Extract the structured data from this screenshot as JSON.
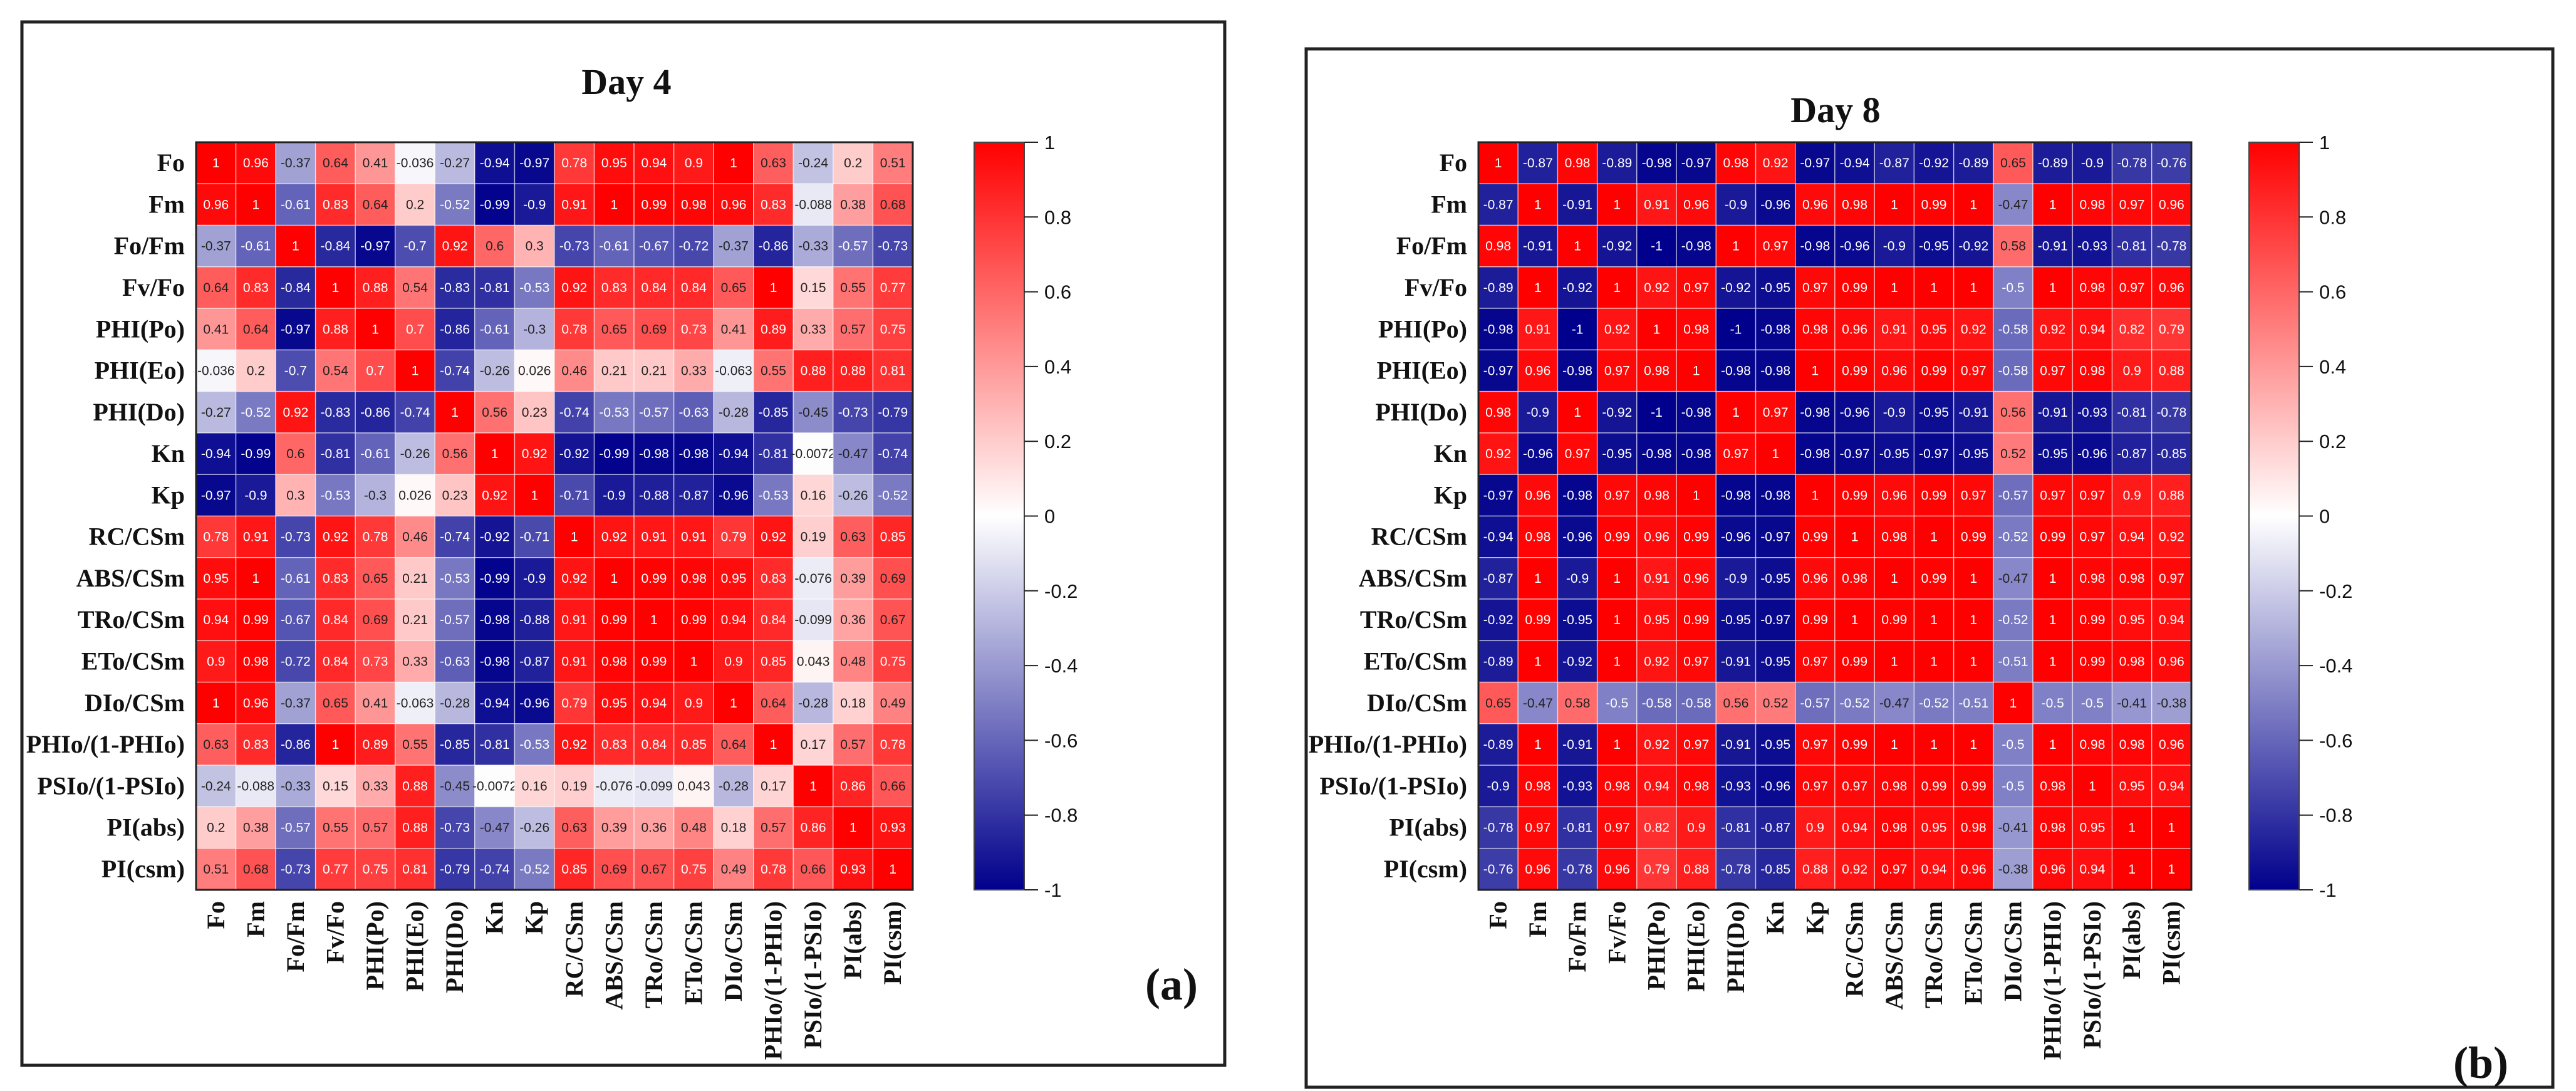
{
  "chart_data": [
    {
      "type": "heatmap",
      "title": "Day 4",
      "panel_label": "(a)",
      "labels": [
        "Fo",
        "Fm",
        "Fo/Fm",
        "Fv/Fo",
        "PHI(Po)",
        "PHI(Eo)",
        "PHI(Do)",
        "Kn",
        "Kp",
        "RC/CSm",
        "ABS/CSm",
        "TRo/CSm",
        "ETo/CSm",
        "DIo/CSm",
        "PHIo/(1-PHIo)",
        "PSIo/(1-PSIo)",
        "PI(abs)",
        "PI(csm)"
      ],
      "matrix": [
        [
          1,
          0.96,
          -0.37,
          0.64,
          0.41,
          -0.036,
          -0.27,
          -0.94,
          -0.97,
          0.78,
          0.95,
          0.94,
          0.9,
          1,
          0.63,
          -0.24,
          0.2,
          0.51
        ],
        [
          0.96,
          1,
          -0.61,
          0.83,
          0.64,
          0.2,
          -0.52,
          -0.99,
          -0.9,
          0.91,
          1,
          0.99,
          0.98,
          0.96,
          0.83,
          -0.088,
          0.38,
          0.68
        ],
        [
          -0.37,
          -0.61,
          1,
          -0.84,
          -0.97,
          -0.7,
          0.92,
          0.6,
          0.3,
          -0.73,
          -0.61,
          -0.67,
          -0.72,
          -0.37,
          -0.86,
          -0.33,
          -0.57,
          -0.73
        ],
        [
          0.64,
          0.83,
          -0.84,
          1,
          0.88,
          0.54,
          -0.83,
          -0.81,
          -0.53,
          0.92,
          0.83,
          0.84,
          0.84,
          0.65,
          1,
          0.15,
          0.55,
          0.77
        ],
        [
          0.41,
          0.64,
          -0.97,
          0.88,
          1,
          0.7,
          -0.86,
          -0.61,
          -0.3,
          0.78,
          0.65,
          0.69,
          0.73,
          0.41,
          0.89,
          0.33,
          0.57,
          0.75
        ],
        [
          -0.036,
          0.2,
          -0.7,
          0.54,
          0.7,
          1,
          -0.74,
          -0.26,
          0.026,
          0.46,
          0.21,
          0.21,
          0.33,
          -0.063,
          0.55,
          0.88,
          0.88,
          0.81
        ],
        [
          -0.27,
          -0.52,
          0.92,
          -0.83,
          -0.86,
          -0.74,
          1,
          0.56,
          0.23,
          -0.74,
          -0.53,
          -0.57,
          -0.63,
          -0.28,
          -0.85,
          -0.45,
          -0.73,
          -0.79
        ],
        [
          -0.94,
          -0.99,
          0.6,
          -0.81,
          -0.61,
          -0.26,
          0.56,
          1,
          0.92,
          -0.92,
          -0.99,
          -0.98,
          -0.98,
          -0.94,
          -0.81,
          -0.0072,
          -0.47,
          -0.74
        ],
        [
          -0.97,
          -0.9,
          0.3,
          -0.53,
          -0.3,
          0.026,
          0.23,
          0.92,
          1,
          -0.71,
          -0.9,
          -0.88,
          -0.87,
          -0.96,
          -0.53,
          0.16,
          -0.26,
          -0.52
        ],
        [
          0.78,
          0.91,
          -0.73,
          0.92,
          0.78,
          0.46,
          -0.74,
          -0.92,
          -0.71,
          1,
          0.92,
          0.91,
          0.91,
          0.79,
          0.92,
          0.19,
          0.63,
          0.85
        ],
        [
          0.95,
          1,
          -0.61,
          0.83,
          0.65,
          0.21,
          -0.53,
          -0.99,
          -0.9,
          0.92,
          1,
          0.99,
          0.98,
          0.95,
          0.83,
          -0.076,
          0.39,
          0.69
        ],
        [
          0.94,
          0.99,
          -0.67,
          0.84,
          0.69,
          0.21,
          -0.57,
          -0.98,
          -0.88,
          0.91,
          0.99,
          1,
          0.99,
          0.94,
          0.84,
          -0.099,
          0.36,
          0.67
        ],
        [
          0.9,
          0.98,
          -0.72,
          0.84,
          0.73,
          0.33,
          -0.63,
          -0.98,
          -0.87,
          0.91,
          0.98,
          0.99,
          1,
          0.9,
          0.85,
          0.043,
          0.48,
          0.75
        ],
        [
          1,
          0.96,
          -0.37,
          0.65,
          0.41,
          -0.063,
          -0.28,
          -0.94,
          -0.96,
          0.79,
          0.95,
          0.94,
          0.9,
          1,
          0.64,
          -0.28,
          0.18,
          0.49
        ],
        [
          0.63,
          0.83,
          -0.86,
          1,
          0.89,
          0.55,
          -0.85,
          -0.81,
          -0.53,
          0.92,
          0.83,
          0.84,
          0.85,
          0.64,
          1,
          0.17,
          0.57,
          0.78
        ],
        [
          -0.24,
          -0.088,
          -0.33,
          0.15,
          0.33,
          0.88,
          -0.45,
          -0.0072,
          0.16,
          0.19,
          -0.076,
          -0.099,
          0.043,
          -0.28,
          0.17,
          1,
          0.86,
          0.66
        ],
        [
          0.2,
          0.38,
          -0.57,
          0.55,
          0.57,
          0.88,
          -0.73,
          -0.47,
          -0.26,
          0.63,
          0.39,
          0.36,
          0.48,
          0.18,
          0.57,
          0.86,
          1,
          0.93
        ],
        [
          0.51,
          0.68,
          -0.73,
          0.77,
          0.75,
          0.81,
          -0.79,
          -0.74,
          -0.52,
          0.85,
          0.69,
          0.67,
          0.75,
          0.49,
          0.78,
          0.66,
          0.93,
          1
        ]
      ],
      "colorbar": {
        "range": [
          -1,
          1
        ],
        "ticks": [
          "1",
          "0.8",
          "0.6",
          "0.4",
          "0.2",
          "0",
          "-0.2",
          "-0.4",
          "-0.6",
          "-0.8",
          "-1"
        ],
        "low_color": "#00008c",
        "mid_color": "#ffffff",
        "high_color": "#ff0000"
      }
    },
    {
      "type": "heatmap",
      "title": "Day 8",
      "panel_label": "(b)",
      "labels": [
        "Fo",
        "Fm",
        "Fo/Fm",
        "Fv/Fo",
        "PHI(Po)",
        "PHI(Eo)",
        "PHI(Do)",
        "Kn",
        "Kp",
        "RC/CSm",
        "ABS/CSm",
        "TRo/CSm",
        "ETo/CSm",
        "DIo/CSm",
        "PHIo/(1-PHIo)",
        "PSIo/(1-PSIo)",
        "PI(abs)",
        "PI(csm)"
      ],
      "matrix": [
        [
          1,
          -0.87,
          0.98,
          -0.89,
          -0.98,
          -0.97,
          0.98,
          0.92,
          -0.97,
          -0.94,
          -0.87,
          -0.92,
          -0.89,
          0.65,
          -0.89,
          -0.9,
          -0.78,
          -0.76
        ],
        [
          -0.87,
          1,
          -0.91,
          1,
          0.91,
          0.96,
          -0.9,
          -0.96,
          0.96,
          0.98,
          1,
          0.99,
          1,
          -0.47,
          1,
          0.98,
          0.97,
          0.96
        ],
        [
          0.98,
          -0.91,
          1,
          -0.92,
          -1,
          -0.98,
          1,
          0.97,
          -0.98,
          -0.96,
          -0.9,
          -0.95,
          -0.92,
          0.58,
          -0.91,
          -0.93,
          -0.81,
          -0.78
        ],
        [
          -0.89,
          1,
          -0.92,
          1,
          0.92,
          0.97,
          -0.92,
          -0.95,
          0.97,
          0.99,
          1,
          1,
          1,
          -0.5,
          1,
          0.98,
          0.97,
          0.96
        ],
        [
          -0.98,
          0.91,
          -1,
          0.92,
          1,
          0.98,
          -1,
          -0.98,
          0.98,
          0.96,
          0.91,
          0.95,
          0.92,
          -0.58,
          0.92,
          0.94,
          0.82,
          0.79
        ],
        [
          -0.97,
          0.96,
          -0.98,
          0.97,
          0.98,
          1,
          -0.98,
          -0.98,
          1,
          0.99,
          0.96,
          0.99,
          0.97,
          -0.58,
          0.97,
          0.98,
          0.9,
          0.88
        ],
        [
          0.98,
          -0.9,
          1,
          -0.92,
          -1,
          -0.98,
          1,
          0.97,
          -0.98,
          -0.96,
          -0.9,
          -0.95,
          -0.91,
          0.56,
          -0.91,
          -0.93,
          -0.81,
          -0.78
        ],
        [
          0.92,
          -0.96,
          0.97,
          -0.95,
          -0.98,
          -0.98,
          0.97,
          1,
          -0.98,
          -0.97,
          -0.95,
          -0.97,
          -0.95,
          0.52,
          -0.95,
          -0.96,
          -0.87,
          -0.85
        ],
        [
          -0.97,
          0.96,
          -0.98,
          0.97,
          0.98,
          1,
          -0.98,
          -0.98,
          1,
          0.99,
          0.96,
          0.99,
          0.97,
          -0.57,
          0.97,
          0.97,
          0.9,
          0.88
        ],
        [
          -0.94,
          0.98,
          -0.96,
          0.99,
          0.96,
          0.99,
          -0.96,
          -0.97,
          0.99,
          1,
          0.98,
          1,
          0.99,
          -0.52,
          0.99,
          0.97,
          0.94,
          0.92
        ],
        [
          -0.87,
          1,
          -0.9,
          1,
          0.91,
          0.96,
          -0.9,
          -0.95,
          0.96,
          0.98,
          1,
          0.99,
          1,
          -0.47,
          1,
          0.98,
          0.98,
          0.97
        ],
        [
          -0.92,
          0.99,
          -0.95,
          1,
          0.95,
          0.99,
          -0.95,
          -0.97,
          0.99,
          1,
          0.99,
          1,
          1,
          -0.52,
          1,
          0.99,
          0.95,
          0.94
        ],
        [
          -0.89,
          1,
          -0.92,
          1,
          0.92,
          0.97,
          -0.91,
          -0.95,
          0.97,
          0.99,
          1,
          1,
          1,
          -0.51,
          1,
          0.99,
          0.98,
          0.96
        ],
        [
          0.65,
          -0.47,
          0.58,
          -0.5,
          -0.58,
          -0.58,
          0.56,
          0.52,
          -0.57,
          -0.52,
          -0.47,
          -0.52,
          -0.51,
          1,
          -0.5,
          -0.5,
          -0.41,
          -0.38
        ],
        [
          -0.89,
          1,
          -0.91,
          1,
          0.92,
          0.97,
          -0.91,
          -0.95,
          0.97,
          0.99,
          1,
          1,
          1,
          -0.5,
          1,
          0.98,
          0.98,
          0.96
        ],
        [
          -0.9,
          0.98,
          -0.93,
          0.98,
          0.94,
          0.98,
          -0.93,
          -0.96,
          0.97,
          0.97,
          0.98,
          0.99,
          0.99,
          -0.5,
          0.98,
          1,
          0.95,
          0.94
        ],
        [
          -0.78,
          0.97,
          -0.81,
          0.97,
          0.82,
          0.9,
          -0.81,
          -0.87,
          0.9,
          0.94,
          0.98,
          0.95,
          0.98,
          -0.41,
          0.98,
          0.95,
          1,
          1
        ],
        [
          -0.76,
          0.96,
          -0.78,
          0.96,
          0.79,
          0.88,
          -0.78,
          -0.85,
          0.88,
          0.92,
          0.97,
          0.94,
          0.96,
          -0.38,
          0.96,
          0.94,
          1,
          1
        ]
      ],
      "colorbar": {
        "range": [
          -1,
          1
        ],
        "ticks": [
          "1",
          "0.8",
          "0.6",
          "0.4",
          "0.2",
          "0",
          "-0.2",
          "-0.4",
          "-0.6",
          "-0.8",
          "-1"
        ],
        "low_color": "#00008c",
        "mid_color": "#ffffff",
        "high_color": "#ff0000"
      }
    }
  ]
}
